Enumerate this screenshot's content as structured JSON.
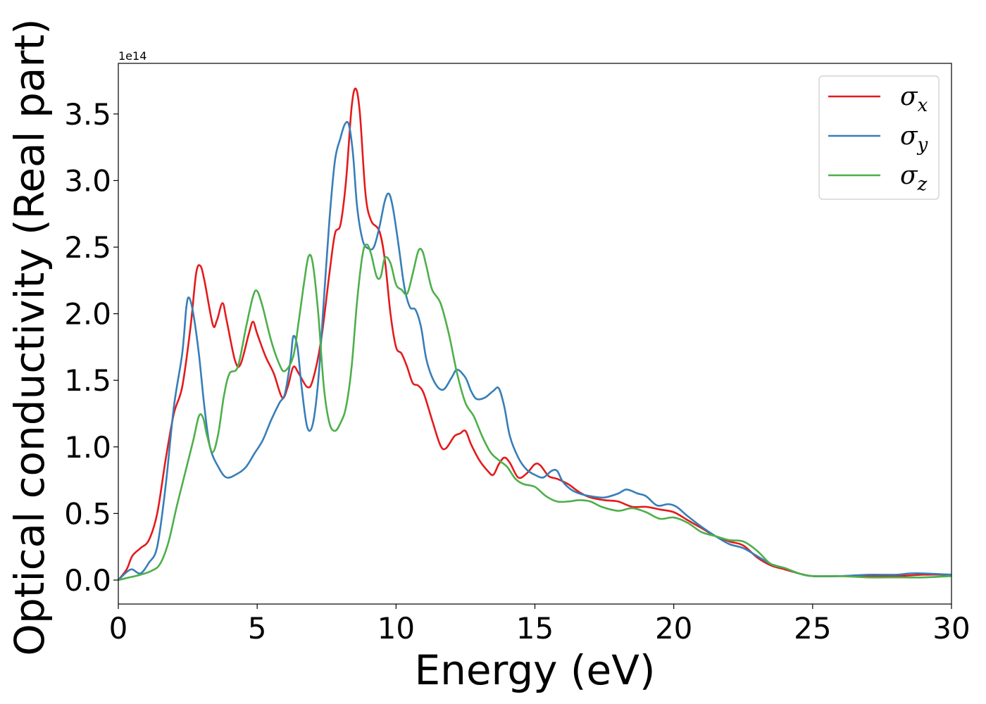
{
  "chart_data": {
    "type": "line",
    "xlabel": "Energy (eV)",
    "ylabel": "Optical conductivity (Real part)",
    "y_offset_label": "1e14",
    "xlim": [
      0,
      30
    ],
    "ylim": [
      -0.18,
      3.88
    ],
    "x_ticks": [
      0,
      5,
      10,
      15,
      20,
      25,
      30
    ],
    "x_tick_labels": [
      "0",
      "5",
      "10",
      "15",
      "20",
      "25",
      "30"
    ],
    "y_ticks": [
      0.0,
      0.5,
      1.0,
      1.5,
      2.0,
      2.5,
      3.0,
      3.5
    ],
    "y_tick_labels": [
      "0.0",
      "0.5",
      "1.0",
      "1.5",
      "2.0",
      "2.5",
      "3.0",
      "3.5"
    ],
    "grid": false,
    "legend_position": "top-right",
    "series": [
      {
        "name": "σx",
        "symbol": "σ",
        "subscript": "x",
        "color": "#e41a1c",
        "points": [
          [
            0,
            0
          ],
          [
            0.3,
            0.08
          ],
          [
            0.5,
            0.18
          ],
          [
            0.8,
            0.24
          ],
          [
            1.1,
            0.3
          ],
          [
            1.4,
            0.5
          ],
          [
            1.7,
            0.9
          ],
          [
            2.0,
            1.25
          ],
          [
            2.3,
            1.45
          ],
          [
            2.6,
            1.9
          ],
          [
            2.8,
            2.3
          ],
          [
            2.95,
            2.36
          ],
          [
            3.1,
            2.25
          ],
          [
            3.4,
            1.92
          ],
          [
            3.55,
            1.95
          ],
          [
            3.75,
            2.08
          ],
          [
            3.9,
            1.95
          ],
          [
            4.2,
            1.65
          ],
          [
            4.4,
            1.62
          ],
          [
            4.7,
            1.85
          ],
          [
            4.85,
            1.94
          ],
          [
            5.0,
            1.85
          ],
          [
            5.3,
            1.68
          ],
          [
            5.6,
            1.55
          ],
          [
            5.9,
            1.37
          ],
          [
            6.1,
            1.45
          ],
          [
            6.3,
            1.6
          ],
          [
            6.5,
            1.55
          ],
          [
            6.8,
            1.45
          ],
          [
            7.0,
            1.5
          ],
          [
            7.3,
            1.8
          ],
          [
            7.6,
            2.3
          ],
          [
            7.8,
            2.6
          ],
          [
            8.0,
            2.67
          ],
          [
            8.2,
            3.0
          ],
          [
            8.4,
            3.55
          ],
          [
            8.55,
            3.69
          ],
          [
            8.7,
            3.5
          ],
          [
            8.9,
            2.9
          ],
          [
            9.1,
            2.7
          ],
          [
            9.4,
            2.62
          ],
          [
            9.6,
            2.4
          ],
          [
            9.8,
            2.0
          ],
          [
            10.0,
            1.75
          ],
          [
            10.2,
            1.7
          ],
          [
            10.4,
            1.6
          ],
          [
            10.6,
            1.48
          ],
          [
            10.8,
            1.46
          ],
          [
            11.0,
            1.4
          ],
          [
            11.3,
            1.2
          ],
          [
            11.6,
            1.01
          ],
          [
            11.8,
            0.99
          ],
          [
            12.1,
            1.08
          ],
          [
            12.3,
            1.1
          ],
          [
            12.5,
            1.12
          ],
          [
            12.7,
            1.02
          ],
          [
            13.0,
            0.9
          ],
          [
            13.3,
            0.82
          ],
          [
            13.5,
            0.79
          ],
          [
            13.7,
            0.87
          ],
          [
            13.9,
            0.92
          ],
          [
            14.1,
            0.88
          ],
          [
            14.4,
            0.77
          ],
          [
            14.7,
            0.8
          ],
          [
            15.0,
            0.87
          ],
          [
            15.2,
            0.86
          ],
          [
            15.5,
            0.78
          ],
          [
            15.8,
            0.76
          ],
          [
            16.2,
            0.72
          ],
          [
            16.6,
            0.66
          ],
          [
            17.0,
            0.62
          ],
          [
            17.5,
            0.6
          ],
          [
            18.0,
            0.59
          ],
          [
            18.5,
            0.55
          ],
          [
            19.0,
            0.55
          ],
          [
            19.5,
            0.53
          ],
          [
            20.0,
            0.51
          ],
          [
            20.5,
            0.45
          ],
          [
            21.0,
            0.39
          ],
          [
            21.5,
            0.33
          ],
          [
            22.0,
            0.29
          ],
          [
            22.5,
            0.26
          ],
          [
            23.0,
            0.17
          ],
          [
            23.5,
            0.11
          ],
          [
            24.0,
            0.08
          ],
          [
            24.5,
            0.05
          ],
          [
            25.0,
            0.03
          ],
          [
            26.0,
            0.03
          ],
          [
            27.0,
            0.03
          ],
          [
            28.0,
            0.03
          ],
          [
            29.0,
            0.04
          ],
          [
            30.0,
            0.04
          ]
        ]
      },
      {
        "name": "σy",
        "symbol": "σ",
        "subscript": "y",
        "color": "#377eb8",
        "points": [
          [
            0,
            0
          ],
          [
            0.3,
            0.06
          ],
          [
            0.5,
            0.08
          ],
          [
            0.8,
            0.05
          ],
          [
            1.1,
            0.13
          ],
          [
            1.4,
            0.25
          ],
          [
            1.7,
            0.7
          ],
          [
            2.0,
            1.3
          ],
          [
            2.3,
            1.7
          ],
          [
            2.45,
            2.05
          ],
          [
            2.55,
            2.12
          ],
          [
            2.7,
            2.0
          ],
          [
            2.9,
            1.7
          ],
          [
            3.1,
            1.3
          ],
          [
            3.3,
            1.0
          ],
          [
            3.6,
            0.85
          ],
          [
            3.9,
            0.77
          ],
          [
            4.3,
            0.8
          ],
          [
            4.6,
            0.85
          ],
          [
            4.9,
            0.95
          ],
          [
            5.2,
            1.05
          ],
          [
            5.5,
            1.2
          ],
          [
            5.8,
            1.33
          ],
          [
            6.0,
            1.4
          ],
          [
            6.2,
            1.65
          ],
          [
            6.3,
            1.83
          ],
          [
            6.45,
            1.75
          ],
          [
            6.6,
            1.45
          ],
          [
            6.8,
            1.15
          ],
          [
            7.0,
            1.17
          ],
          [
            7.2,
            1.5
          ],
          [
            7.4,
            2.1
          ],
          [
            7.6,
            2.7
          ],
          [
            7.8,
            3.15
          ],
          [
            8.0,
            3.32
          ],
          [
            8.15,
            3.42
          ],
          [
            8.3,
            3.42
          ],
          [
            8.45,
            3.2
          ],
          [
            8.6,
            2.8
          ],
          [
            8.8,
            2.55
          ],
          [
            9.0,
            2.49
          ],
          [
            9.2,
            2.5
          ],
          [
            9.4,
            2.65
          ],
          [
            9.6,
            2.85
          ],
          [
            9.75,
            2.9
          ],
          [
            9.9,
            2.78
          ],
          [
            10.1,
            2.5
          ],
          [
            10.3,
            2.2
          ],
          [
            10.5,
            2.05
          ],
          [
            10.7,
            2.03
          ],
          [
            10.9,
            1.9
          ],
          [
            11.1,
            1.65
          ],
          [
            11.4,
            1.48
          ],
          [
            11.7,
            1.43
          ],
          [
            12.0,
            1.52
          ],
          [
            12.2,
            1.58
          ],
          [
            12.5,
            1.52
          ],
          [
            12.7,
            1.42
          ],
          [
            12.9,
            1.36
          ],
          [
            13.2,
            1.37
          ],
          [
            13.5,
            1.42
          ],
          [
            13.7,
            1.44
          ],
          [
            13.9,
            1.3
          ],
          [
            14.1,
            1.08
          ],
          [
            14.4,
            0.92
          ],
          [
            14.7,
            0.83
          ],
          [
            15.0,
            0.79
          ],
          [
            15.3,
            0.77
          ],
          [
            15.6,
            0.82
          ],
          [
            15.8,
            0.82
          ],
          [
            16.0,
            0.74
          ],
          [
            16.3,
            0.68
          ],
          [
            16.6,
            0.65
          ],
          [
            17.0,
            0.63
          ],
          [
            17.5,
            0.62
          ],
          [
            18.0,
            0.65
          ],
          [
            18.3,
            0.68
          ],
          [
            18.7,
            0.65
          ],
          [
            19.0,
            0.63
          ],
          [
            19.4,
            0.56
          ],
          [
            19.8,
            0.57
          ],
          [
            20.1,
            0.55
          ],
          [
            20.5,
            0.48
          ],
          [
            21.0,
            0.4
          ],
          [
            21.5,
            0.33
          ],
          [
            22.0,
            0.27
          ],
          [
            22.5,
            0.24
          ],
          [
            23.0,
            0.18
          ],
          [
            23.5,
            0.12
          ],
          [
            24.0,
            0.09
          ],
          [
            24.5,
            0.05
          ],
          [
            25.0,
            0.03
          ],
          [
            26.0,
            0.03
          ],
          [
            27.0,
            0.04
          ],
          [
            28.0,
            0.04
          ],
          [
            28.5,
            0.05
          ],
          [
            29.0,
            0.05
          ],
          [
            30.0,
            0.04
          ]
        ]
      },
      {
        "name": "σz",
        "symbol": "σ",
        "subscript": "z",
        "color": "#4daf4a",
        "points": [
          [
            0,
            0
          ],
          [
            0.4,
            0.02
          ],
          [
            0.8,
            0.04
          ],
          [
            1.2,
            0.07
          ],
          [
            1.5,
            0.12
          ],
          [
            1.8,
            0.28
          ],
          [
            2.1,
            0.55
          ],
          [
            2.4,
            0.8
          ],
          [
            2.7,
            1.05
          ],
          [
            2.9,
            1.23
          ],
          [
            3.05,
            1.22
          ],
          [
            3.2,
            1.08
          ],
          [
            3.4,
            0.96
          ],
          [
            3.6,
            1.1
          ],
          [
            3.8,
            1.38
          ],
          [
            4.0,
            1.55
          ],
          [
            4.3,
            1.6
          ],
          [
            4.6,
            1.9
          ],
          [
            4.85,
            2.13
          ],
          [
            5.0,
            2.17
          ],
          [
            5.2,
            2.05
          ],
          [
            5.5,
            1.8
          ],
          [
            5.8,
            1.62
          ],
          [
            6.0,
            1.57
          ],
          [
            6.3,
            1.68
          ],
          [
            6.5,
            1.95
          ],
          [
            6.7,
            2.25
          ],
          [
            6.85,
            2.43
          ],
          [
            7.0,
            2.38
          ],
          [
            7.2,
            2.0
          ],
          [
            7.4,
            1.45
          ],
          [
            7.6,
            1.18
          ],
          [
            7.8,
            1.12
          ],
          [
            8.0,
            1.18
          ],
          [
            8.2,
            1.3
          ],
          [
            8.4,
            1.6
          ],
          [
            8.6,
            2.1
          ],
          [
            8.8,
            2.45
          ],
          [
            8.95,
            2.52
          ],
          [
            9.1,
            2.45
          ],
          [
            9.3,
            2.28
          ],
          [
            9.45,
            2.28
          ],
          [
            9.6,
            2.42
          ],
          [
            9.8,
            2.38
          ],
          [
            10.0,
            2.22
          ],
          [
            10.2,
            2.18
          ],
          [
            10.4,
            2.15
          ],
          [
            10.6,
            2.3
          ],
          [
            10.8,
            2.47
          ],
          [
            10.95,
            2.47
          ],
          [
            11.1,
            2.35
          ],
          [
            11.3,
            2.18
          ],
          [
            11.6,
            2.08
          ],
          [
            11.9,
            1.85
          ],
          [
            12.2,
            1.55
          ],
          [
            12.5,
            1.33
          ],
          [
            12.8,
            1.23
          ],
          [
            13.1,
            1.08
          ],
          [
            13.4,
            0.96
          ],
          [
            13.7,
            0.9
          ],
          [
            14.0,
            0.85
          ],
          [
            14.3,
            0.76
          ],
          [
            14.6,
            0.72
          ],
          [
            15.0,
            0.7
          ],
          [
            15.4,
            0.63
          ],
          [
            15.8,
            0.59
          ],
          [
            16.2,
            0.59
          ],
          [
            16.6,
            0.6
          ],
          [
            17.0,
            0.59
          ],
          [
            17.4,
            0.55
          ],
          [
            18.0,
            0.52
          ],
          [
            18.5,
            0.54
          ],
          [
            19.0,
            0.51
          ],
          [
            19.5,
            0.46
          ],
          [
            20.0,
            0.47
          ],
          [
            20.5,
            0.43
          ],
          [
            21.0,
            0.36
          ],
          [
            21.5,
            0.33
          ],
          [
            22.0,
            0.3
          ],
          [
            22.5,
            0.29
          ],
          [
            23.0,
            0.22
          ],
          [
            23.5,
            0.12
          ],
          [
            24.0,
            0.09
          ],
          [
            24.5,
            0.05
          ],
          [
            25.0,
            0.03
          ],
          [
            26.0,
            0.03
          ],
          [
            27.0,
            0.02
          ],
          [
            28.0,
            0.02
          ],
          [
            29.0,
            0.02
          ],
          [
            30.0,
            0.03
          ]
        ]
      }
    ]
  }
}
